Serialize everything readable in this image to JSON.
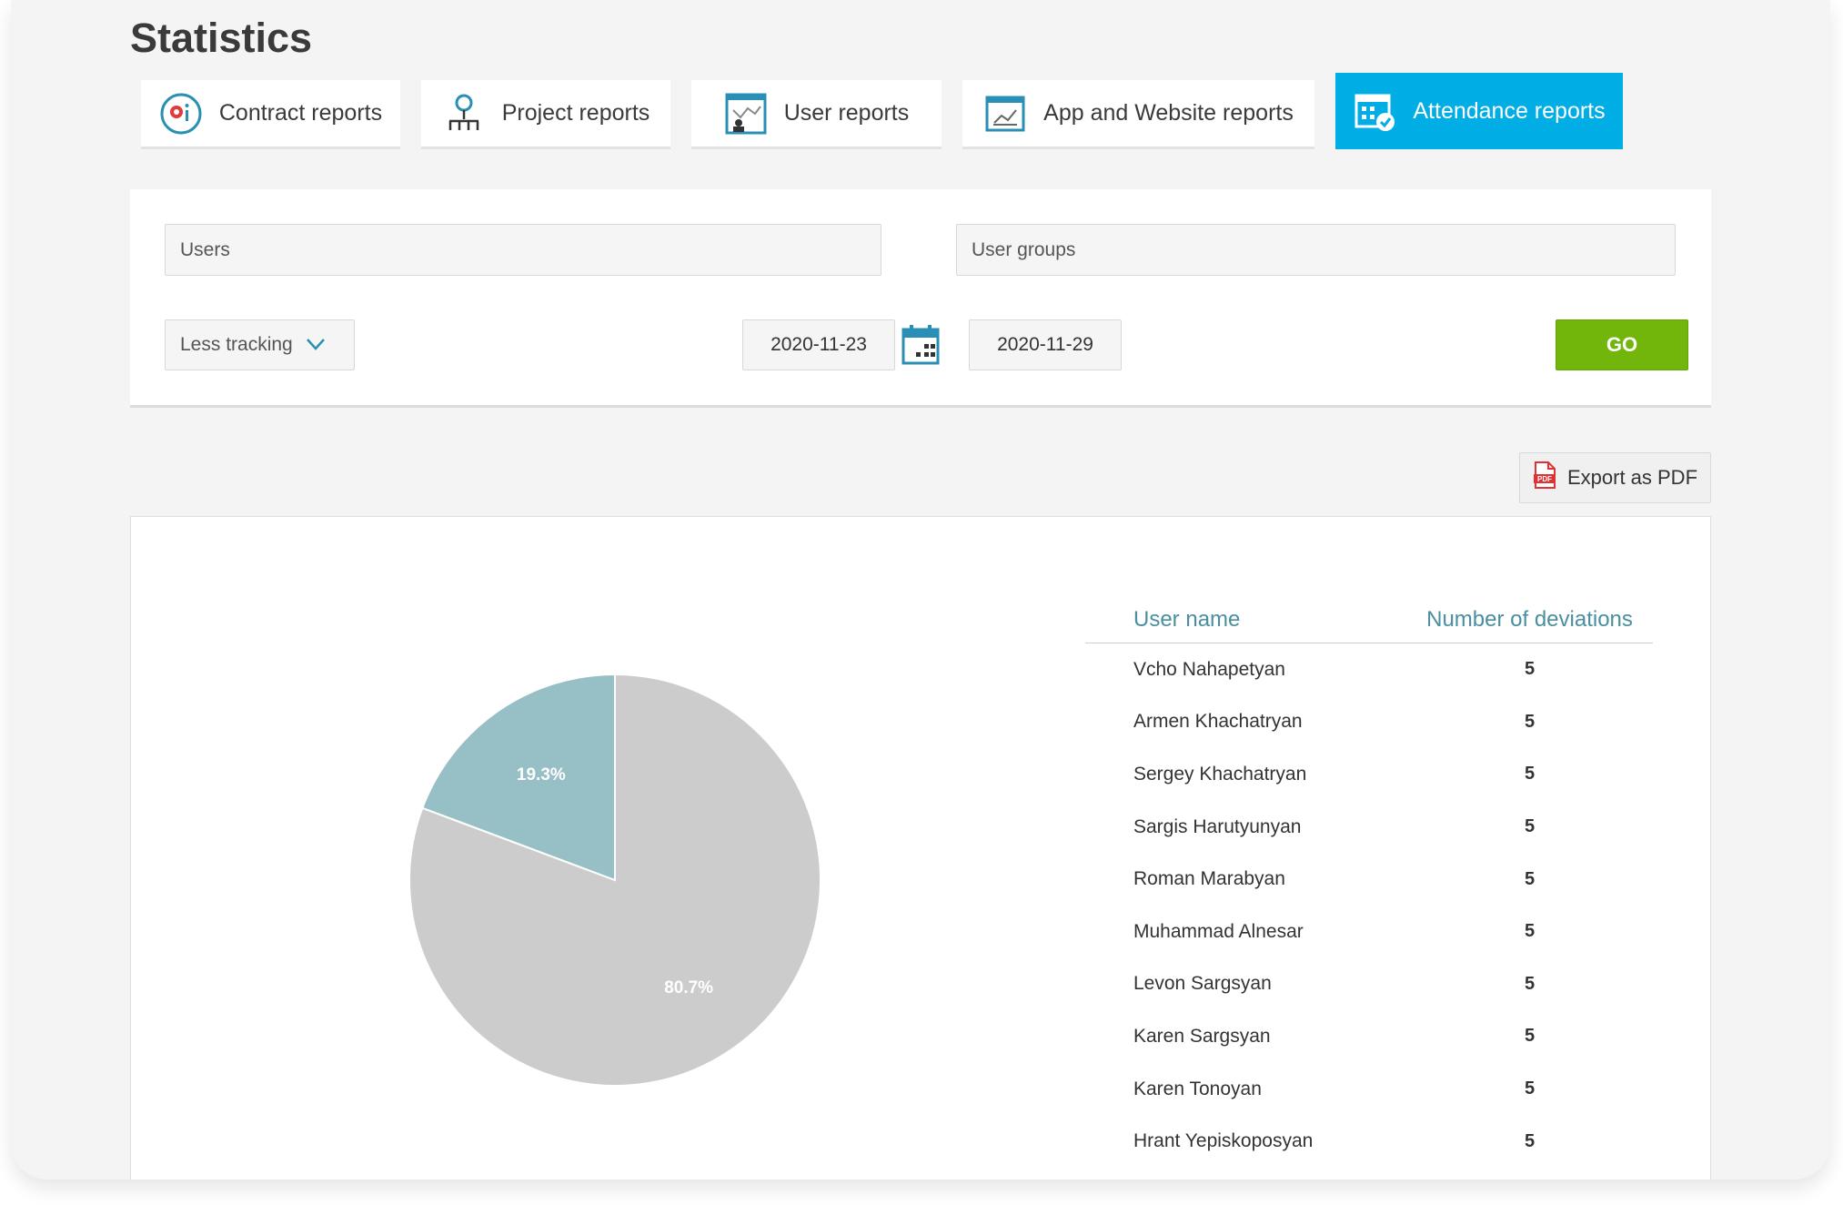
{
  "page": {
    "title": "Statistics"
  },
  "tabs": [
    {
      "label": "Contract reports",
      "icon": "contract-report-icon",
      "active": false
    },
    {
      "label": "Project reports",
      "icon": "project-hierarchy-icon",
      "active": false
    },
    {
      "label": "User reports",
      "icon": "user-report-icon",
      "active": false
    },
    {
      "label": "App and Website reports",
      "icon": "app-website-chart-icon",
      "active": false
    },
    {
      "label": "Attendance reports",
      "icon": "attendance-calendar-icon",
      "active": true
    }
  ],
  "filters": {
    "users_placeholder": "Users",
    "user_groups_placeholder": "User groups",
    "tracking_option": "Less tracking",
    "date_from": "2020-11-23",
    "date_to": "2020-11-29",
    "go_label": "GO"
  },
  "export": {
    "label": "Export as PDF",
    "icon": "pdf-file-icon"
  },
  "colors": {
    "accent": "#00ade4",
    "go": "#72b60b",
    "header_text": "#4a8fa0",
    "slice_a": "#cccccc",
    "slice_b": "#97c0c6"
  },
  "chart_data": {
    "type": "pie",
    "slices": [
      {
        "label": "80.7%",
        "value": 80.7,
        "color": "#cccccc"
      },
      {
        "label": "19.3%",
        "value": 19.3,
        "color": "#97c0c6"
      }
    ]
  },
  "table": {
    "headers": {
      "name": "User name",
      "count": "Number of deviations"
    },
    "rows": [
      {
        "name": "Vcho Nahapetyan",
        "count": "5"
      },
      {
        "name": "Armen Khachatryan",
        "count": "5"
      },
      {
        "name": "Sergey Khachatryan",
        "count": "5"
      },
      {
        "name": "Sargis Harutyunyan",
        "count": "5"
      },
      {
        "name": "Roman Marabyan",
        "count": "5"
      },
      {
        "name": "Muhammad Alnesar",
        "count": "5"
      },
      {
        "name": "Levon Sargsyan",
        "count": "5"
      },
      {
        "name": "Karen Sargsyan",
        "count": "5"
      },
      {
        "name": "Karen Tonoyan",
        "count": "5"
      },
      {
        "name": "Hrant Yepiskoposyan",
        "count": "5"
      }
    ]
  }
}
